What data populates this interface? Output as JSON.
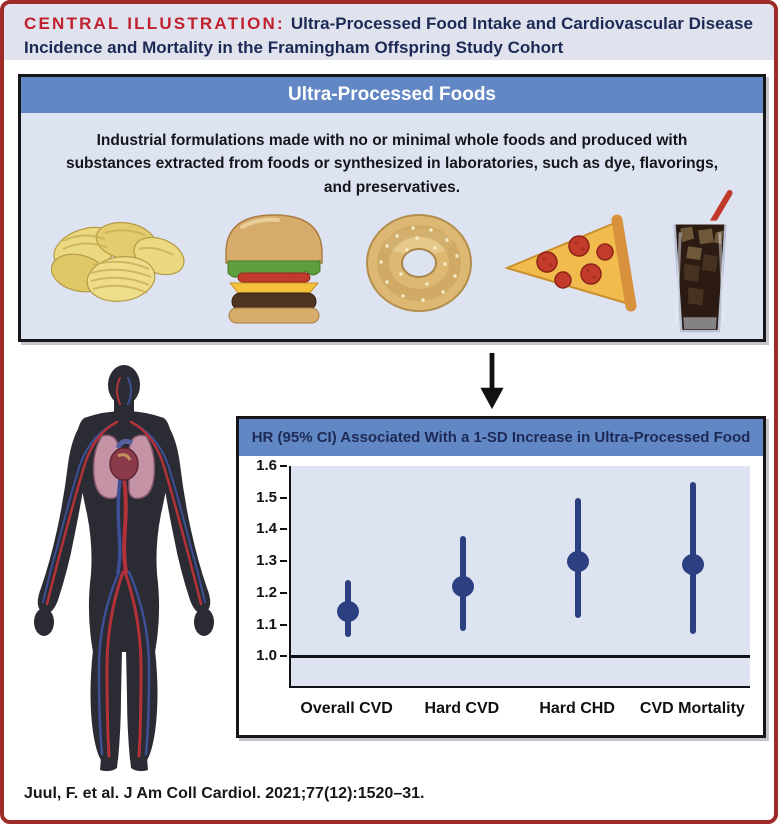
{
  "header": {
    "label": "CENTRAL ILLUSTRATION:",
    "title": "Ultra-Processed Food Intake and Cardiovascular Disease Incidence and Mortality in the Framingham Offspring Study Cohort"
  },
  "upf_panel": {
    "title": "Ultra-Processed Foods",
    "description": "Industrial formulations made with no or minimal whole foods and produced with substances extracted from foods or synthesized in laboratories, such as dye, flavorings, and preservatives.",
    "foods": [
      {
        "name": "Potato chips"
      },
      {
        "name": "Cheeseburger"
      },
      {
        "name": "Bagel"
      },
      {
        "name": "Pizza slice"
      },
      {
        "name": "Cola drink"
      }
    ]
  },
  "chart_data": {
    "type": "scatter",
    "error_bars": true,
    "title": "HR (95% CI) Associated With a 1-SD Increase in Ultra-Processed Food",
    "categories": [
      "Overall CVD",
      "Hard CVD",
      "Hard CHD",
      "CVD Mortality"
    ],
    "series": [
      {
        "name": "HR per 1-SD increase",
        "values": [
          1.14,
          1.22,
          1.3,
          1.29
        ],
        "ci_low": [
          1.06,
          1.08,
          1.12,
          1.07
        ],
        "ci_high": [
          1.24,
          1.38,
          1.5,
          1.55
        ]
      }
    ],
    "yticks": [
      1.0,
      1.1,
      1.2,
      1.3,
      1.4,
      1.5,
      1.6
    ],
    "ylim": [
      0.9,
      1.6
    ],
    "reference_line": 1.0,
    "xlabel": "",
    "ylabel": "",
    "grid": false,
    "legend": "none"
  },
  "citation": "Juul, F. et al. J Am Coll Cardiol. 2021;77(12):1520–31.",
  "colors": {
    "border_red": "#9e2b27",
    "accent_red": "#c1202f",
    "navy": "#1e2a56",
    "bar_blue": "#6187c4",
    "panel_bg": "#dde3f1",
    "band_bg": "#e0e3ee",
    "point_navy": "#2c3f80"
  }
}
